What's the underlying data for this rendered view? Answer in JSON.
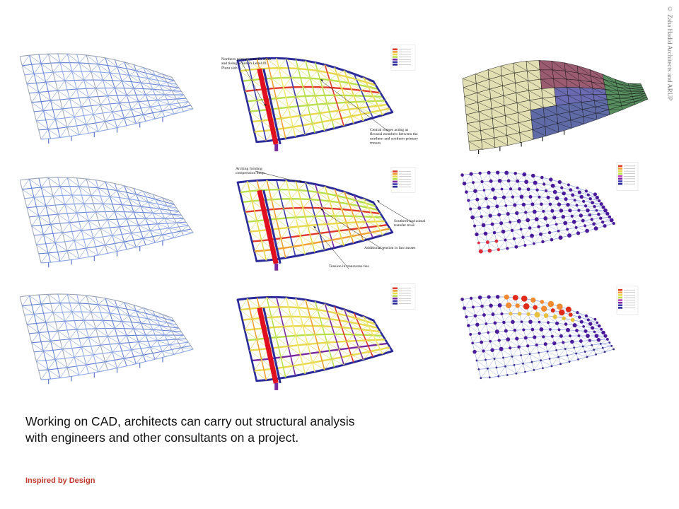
{
  "caption": {
    "line1": "Working on CAD, architects can carry out structural analysis",
    "line2": "with engineers and other consultants on a project."
  },
  "footer": {
    "label": "Inspired by Design",
    "color": "#c0392b"
  },
  "credit": "© Zaha Hadid Architects and ARUP",
  "annotations": {
    "panel2": [
      [
        "Northern primary transfer truss",
        "and tieing action in Level 01",
        "Plaza slab"
      ],
      [
        "Central trusses acting as",
        "flexural members between the",
        "northern and southern primary",
        "trusses"
      ]
    ],
    "panel5": [
      [
        "Arching forming",
        "compression hoop"
      ],
      [
        "Southern horizontal",
        "transfer truss"
      ],
      [
        "Additional tension in fan trusses"
      ],
      [
        "Tension in transverse ties"
      ]
    ]
  }
}
